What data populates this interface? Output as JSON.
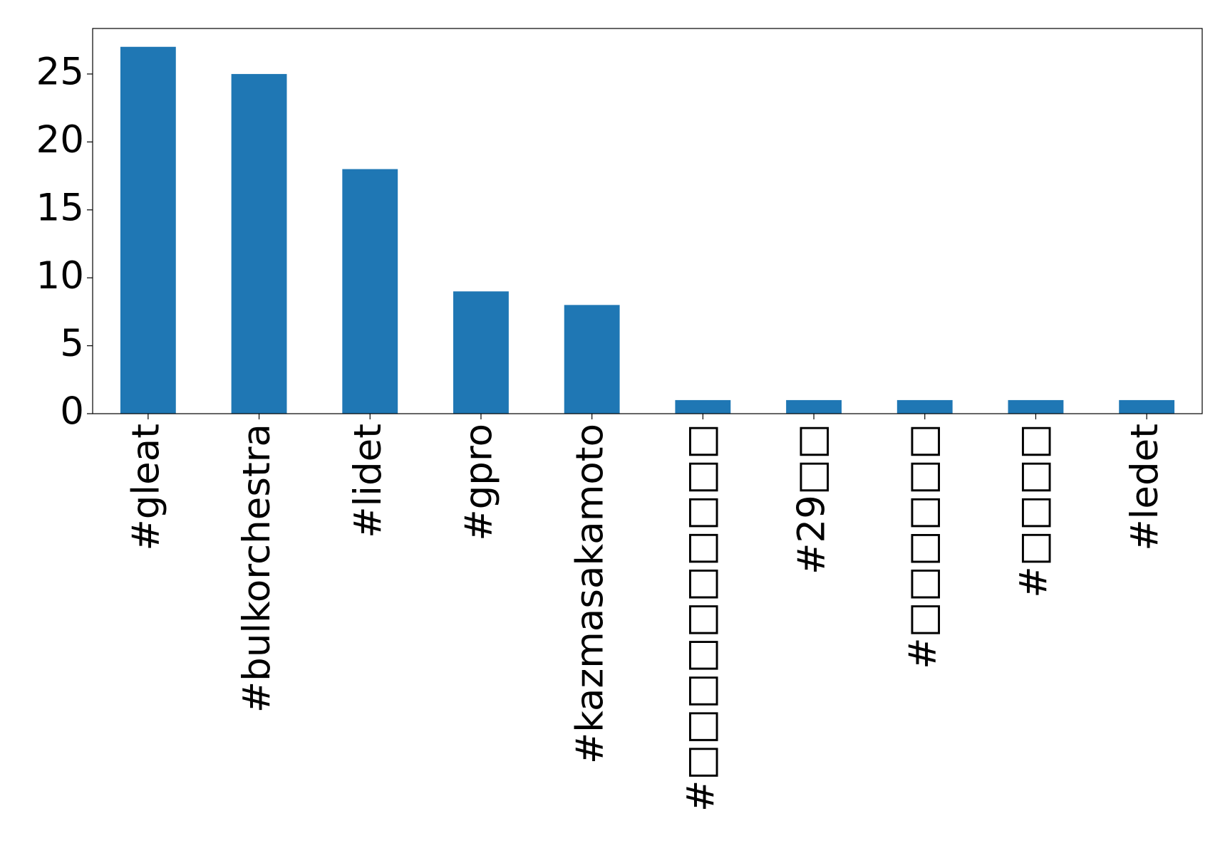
{
  "chart_data": {
    "type": "bar",
    "categories": [
      "#gleat",
      "#bulkorchestra",
      "#lidet",
      "#gpro",
      "#kazmasakamoto",
      "#□□□□□□□□□□",
      "#29□□",
      "#□□□□□□",
      "#□□□□",
      "#ledet"
    ],
    "values": [
      27,
      25,
      18,
      9,
      8,
      1,
      1,
      1,
      1,
      1
    ],
    "color": "#1f77b4",
    "ylim": [
      0,
      28.35
    ],
    "yticks": [
      0,
      5,
      10,
      15,
      20,
      25
    ],
    "grid": false
  }
}
